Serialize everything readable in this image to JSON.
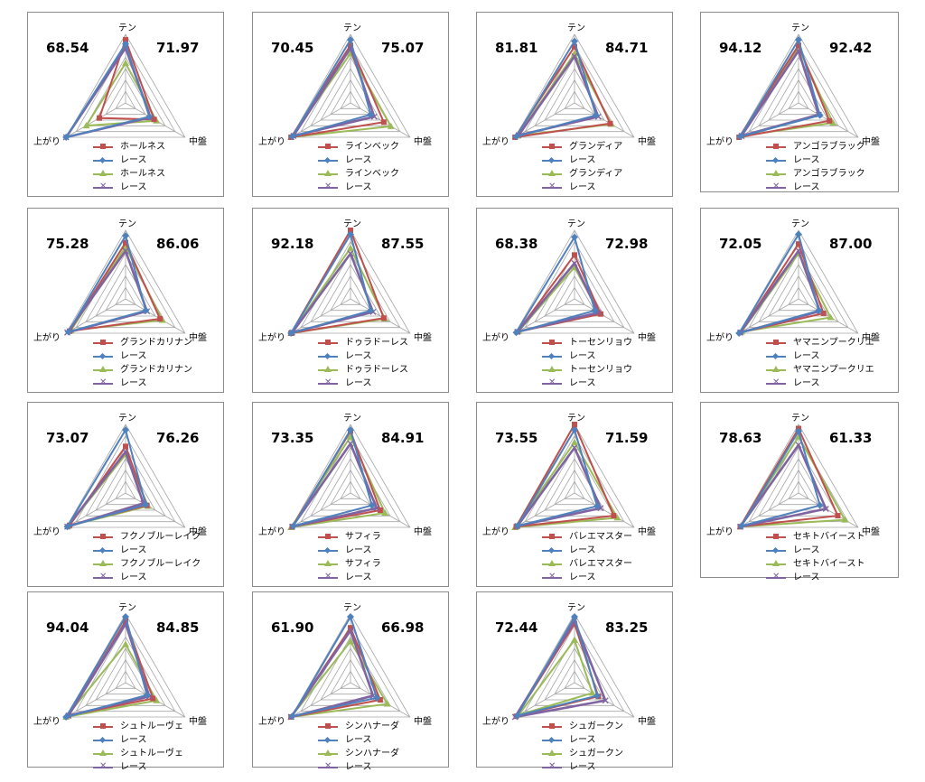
{
  "axes": [
    "テン",
    "中盤",
    "上がり"
  ],
  "colors": {
    "horse": "#c0504d",
    "race": "#4f81bd",
    "horse_prev": "#9bbb59",
    "race_prev": "#8064a2"
  },
  "legend_race_label": "レース",
  "chart_data": [
    {
      "type": "radar",
      "left_value": "68.54",
      "right_value": "71.97",
      "legend": [
        "ホールネス",
        "レース",
        "ホールネス",
        "レース"
      ],
      "series": [
        {
          "values": [
            0.92,
            0.48,
            0.44
          ]
        },
        {
          "values": [
            0.86,
            0.4,
            1.0
          ]
        },
        {
          "values": [
            0.58,
            0.52,
            0.66
          ]
        },
        {
          "values": [
            0.8,
            0.42,
            1.0
          ]
        }
      ]
    },
    {
      "type": "radar",
      "left_value": "70.45",
      "right_value": "75.07",
      "legend": [
        "ラインベック",
        "レース",
        "ラインベック",
        "レース"
      ],
      "series": [
        {
          "values": [
            0.84,
            0.56,
            1.0
          ]
        },
        {
          "values": [
            0.92,
            0.34,
            0.98
          ]
        },
        {
          "values": [
            0.72,
            0.68,
            1.0
          ]
        },
        {
          "values": [
            0.8,
            0.4,
            0.96
          ]
        }
      ]
    },
    {
      "type": "radar",
      "left_value": "81.81",
      "right_value": "84.71",
      "legend": [
        "グランディア",
        "レース",
        "グランディア",
        "レース"
      ],
      "series": [
        {
          "values": [
            0.82,
            0.6,
            1.0
          ]
        },
        {
          "values": [
            0.9,
            0.36,
            0.98
          ]
        },
        {
          "values": [
            0.72,
            0.62,
            0.96
          ]
        },
        {
          "values": [
            0.68,
            0.4,
            0.94
          ]
        }
      ]
    },
    {
      "type": "radar",
      "left_value": "94.12",
      "right_value": "92.42",
      "legend": [
        "アンゴラブラック",
        "レース",
        "アンゴラブラック",
        "レース"
      ],
      "series": [
        {
          "values": [
            0.84,
            0.52,
            1.0
          ]
        },
        {
          "values": [
            0.92,
            0.36,
            0.98
          ]
        },
        {
          "values": [
            0.8,
            0.58,
            0.96
          ]
        },
        {
          "values": [
            0.76,
            0.34,
            0.96
          ]
        }
      ]
    },
    {
      "type": "radar",
      "left_value": "75.28",
      "right_value": "86.06",
      "legend": [
        "グランドカリナン",
        "レース",
        "グランドカリナン",
        "レース"
      ],
      "series": [
        {
          "values": [
            0.82,
            0.58,
            0.94
          ]
        },
        {
          "values": [
            0.92,
            0.34,
            0.96
          ]
        },
        {
          "values": [
            0.76,
            0.62,
            0.92
          ]
        },
        {
          "values": [
            0.7,
            0.36,
            0.98
          ]
        }
      ]
    },
    {
      "type": "radar",
      "left_value": "92.18",
      "right_value": "87.55",
      "legend": [
        "ドゥラドーレス",
        "レース",
        "ドゥラドーレス",
        "レース"
      ],
      "series": [
        {
          "values": [
            1.0,
            0.56,
            1.0
          ]
        },
        {
          "values": [
            0.94,
            0.34,
            1.0
          ]
        },
        {
          "values": [
            0.74,
            0.58,
            1.0
          ]
        },
        {
          "values": [
            0.66,
            0.38,
            0.98
          ]
        }
      ]
    },
    {
      "type": "radar",
      "left_value": "68.38",
      "right_value": "72.98",
      "legend": [
        "トーセンリョウ",
        "レース",
        "トーセンリョウ",
        "レース"
      ],
      "series": [
        {
          "values": [
            0.64,
            0.44,
            0.96
          ]
        },
        {
          "values": [
            0.9,
            0.34,
            0.98
          ]
        },
        {
          "values": [
            0.46,
            0.42,
            0.94
          ]
        },
        {
          "values": [
            0.52,
            0.4,
            0.96
          ]
        }
      ]
    },
    {
      "type": "radar",
      "left_value": "72.05",
      "right_value": "87.00",
      "legend": [
        "ヤマニンプークリエ",
        "レース",
        "ヤマニンプークリエ",
        "レース"
      ],
      "series": [
        {
          "values": [
            0.8,
            0.42,
            0.98
          ]
        },
        {
          "values": [
            0.94,
            0.34,
            1.0
          ]
        },
        {
          "values": [
            0.66,
            0.54,
            0.96
          ]
        },
        {
          "values": [
            0.7,
            0.36,
            0.98
          ]
        }
      ]
    },
    {
      "type": "radar",
      "left_value": "73.07",
      "right_value": "76.26",
      "legend": [
        "フクノブルーレイク",
        "レース",
        "フクノブルーレイク",
        "レース"
      ],
      "series": [
        {
          "values": [
            0.68,
            0.36,
            0.94
          ]
        },
        {
          "values": [
            0.92,
            0.34,
            0.98
          ]
        },
        {
          "values": [
            0.56,
            0.38,
            0.96
          ]
        },
        {
          "values": [
            0.6,
            0.3,
            0.98
          ]
        }
      ]
    },
    {
      "type": "radar",
      "left_value": "73.35",
      "right_value": "84.91",
      "legend": [
        "サフィラ",
        "レース",
        "サフィラ",
        "レース"
      ],
      "series": [
        {
          "values": [
            0.9,
            0.5,
            0.98
          ]
        },
        {
          "values": [
            0.92,
            0.36,
            0.96
          ]
        },
        {
          "values": [
            0.82,
            0.58,
            1.0
          ]
        },
        {
          "values": [
            0.72,
            0.44,
            0.98
          ]
        }
      ]
    },
    {
      "type": "radar",
      "left_value": "73.55",
      "right_value": "71.59",
      "legend": [
        "バレエマスター",
        "レース",
        "バレエマスター",
        "レース"
      ],
      "series": [
        {
          "values": [
            1.0,
            0.66,
            0.98
          ]
        },
        {
          "values": [
            0.92,
            0.38,
            0.96
          ]
        },
        {
          "values": [
            0.74,
            0.72,
            1.0
          ]
        },
        {
          "values": [
            0.66,
            0.44,
            0.96
          ]
        }
      ]
    },
    {
      "type": "radar",
      "left_value": "78.63",
      "right_value": "61.33",
      "legend": [
        "セキトバイースト",
        "レース",
        "セキトバイースト",
        "レース"
      ],
      "series": [
        {
          "values": [
            0.94,
            0.66,
            0.98
          ]
        },
        {
          "values": [
            0.9,
            0.36,
            0.96
          ]
        },
        {
          "values": [
            0.82,
            0.78,
            0.98
          ]
        },
        {
          "values": [
            0.7,
            0.46,
            0.98
          ]
        }
      ]
    },
    {
      "type": "radar",
      "left_value": "94.04",
      "right_value": "84.85",
      "legend": [
        "シュトルーヴェ",
        "レース",
        "シュトルーヴェ",
        "レース"
      ],
      "series": [
        {
          "values": [
            0.9,
            0.46,
            0.96
          ]
        },
        {
          "values": [
            0.96,
            0.36,
            1.0
          ]
        },
        {
          "values": [
            0.56,
            0.52,
            1.0
          ]
        },
        {
          "values": [
            0.86,
            0.4,
            0.96
          ]
        }
      ]
    },
    {
      "type": "radar",
      "left_value": "61.90",
      "right_value": "66.98",
      "legend": [
        "シンハナーダ",
        "レース",
        "シンハナーダ",
        "レース"
      ],
      "series": [
        {
          "values": [
            0.8,
            0.5,
            1.0
          ]
        },
        {
          "values": [
            0.96,
            0.44,
            0.98
          ]
        },
        {
          "values": [
            0.6,
            0.62,
            1.0
          ]
        },
        {
          "values": [
            0.76,
            0.38,
            1.0
          ]
        }
      ]
    },
    {
      "type": "radar",
      "left_value": "72.44",
      "right_value": "83.25",
      "legend": [
        "シュガークン",
        "レース",
        "シュガークン",
        "レース"
      ],
      "series": [
        {
          "values": [
            0.86,
            0.4,
            0.98
          ]
        },
        {
          "values": [
            0.96,
            0.38,
            0.96
          ]
        },
        {
          "values": [
            0.62,
            0.3,
            0.94
          ]
        },
        {
          "values": [
            0.9,
            0.52,
            1.0
          ]
        }
      ]
    }
  ]
}
